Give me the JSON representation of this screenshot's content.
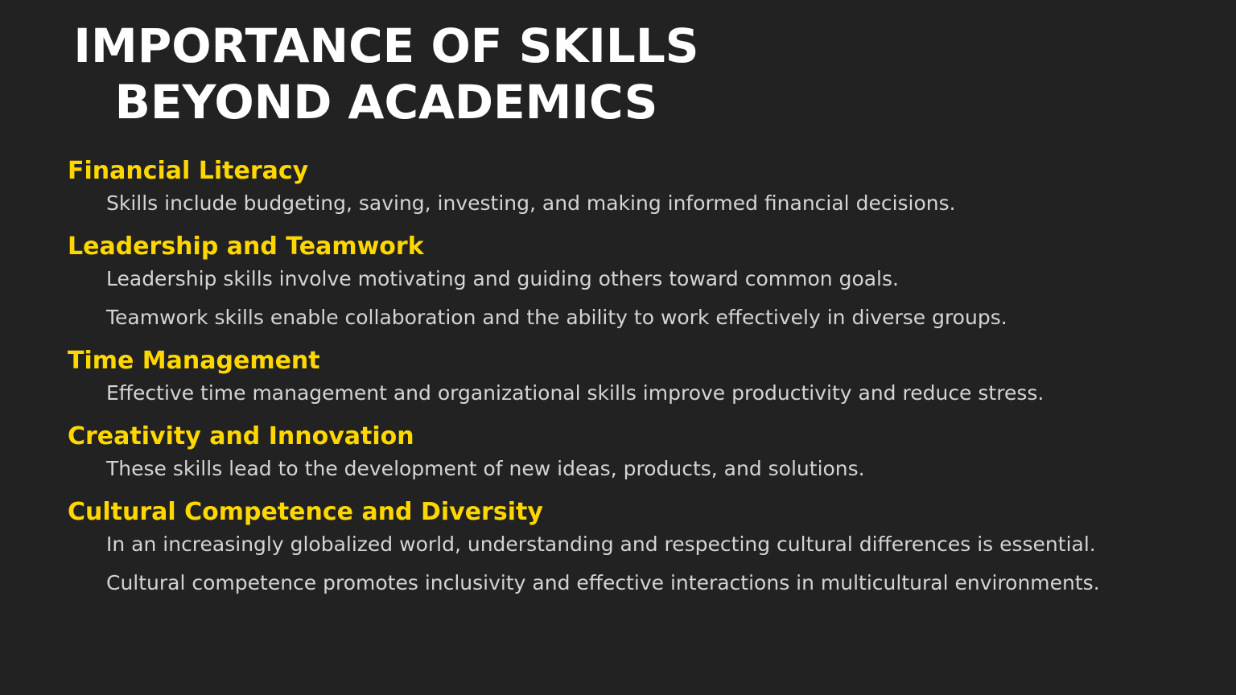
{
  "title": {
    "line1": "IMPORTANCE OF SKILLS",
    "line2": "BEYOND ACADEMICS"
  },
  "sections": [
    {
      "heading": "Financial Literacy",
      "points": [
        "Skills include budgeting, saving, investing, and making informed financial decisions."
      ]
    },
    {
      "heading": "Leadership and Teamwork",
      "points": [
        "Leadership skills involve motivating and guiding others toward common goals.",
        "Teamwork skills enable collaboration and the ability to work effectively in diverse groups."
      ]
    },
    {
      "heading": "Time Management",
      "points": [
        "Effective time management and organizational skills improve productivity and reduce stress."
      ]
    },
    {
      "heading": "Creativity and Innovation",
      "points": [
        "These skills lead to the development of new ideas, products, and solutions."
      ]
    },
    {
      "heading": "Cultural Competence and Diversity",
      "points": [
        "In an increasingly globalized world, understanding and respecting cultural differences is essential.",
        "Cultural competence promotes inclusivity and effective interactions in multicultural environments."
      ]
    }
  ],
  "colors": {
    "background": "#222222",
    "title": "#ffffff",
    "heading": "#ffd700",
    "body": "#d4d4d4"
  }
}
